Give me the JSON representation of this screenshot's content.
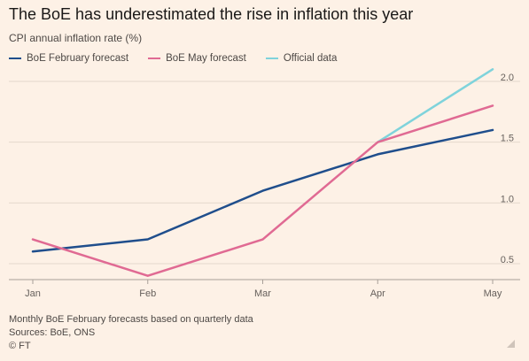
{
  "chart_data": {
    "type": "line",
    "title": "The BoE has underestimated the rise in inflation this year",
    "subtitle": "CPI annual inflation rate (%)",
    "categories": [
      "Jan",
      "Feb",
      "Mar",
      "Apr",
      "May"
    ],
    "series": [
      {
        "name": "BoE February forecast",
        "color": "#1f4e8c",
        "values": [
          0.6,
          0.7,
          1.1,
          1.4,
          1.6
        ]
      },
      {
        "name": "BoE May forecast",
        "color": "#e06a93",
        "values": [
          0.7,
          0.4,
          0.7,
          1.5,
          1.8
        ]
      },
      {
        "name": "Official data",
        "color": "#7fd3db",
        "values": [
          null,
          null,
          null,
          1.5,
          2.1
        ]
      }
    ],
    "ylim": [
      0.4,
      2.1
    ],
    "yticks": [
      0.5,
      1.0,
      1.5,
      2.0
    ],
    "ytick_labels": [
      "0.5",
      "1.0",
      "1.5",
      "2.0"
    ],
    "y_axis_side": "right",
    "grid": true,
    "legend": "top-left"
  },
  "footer": {
    "note": "Monthly BoE February forecasts based on quarterly data",
    "sources": "Sources: BoE, ONS",
    "credit": "© FT"
  }
}
